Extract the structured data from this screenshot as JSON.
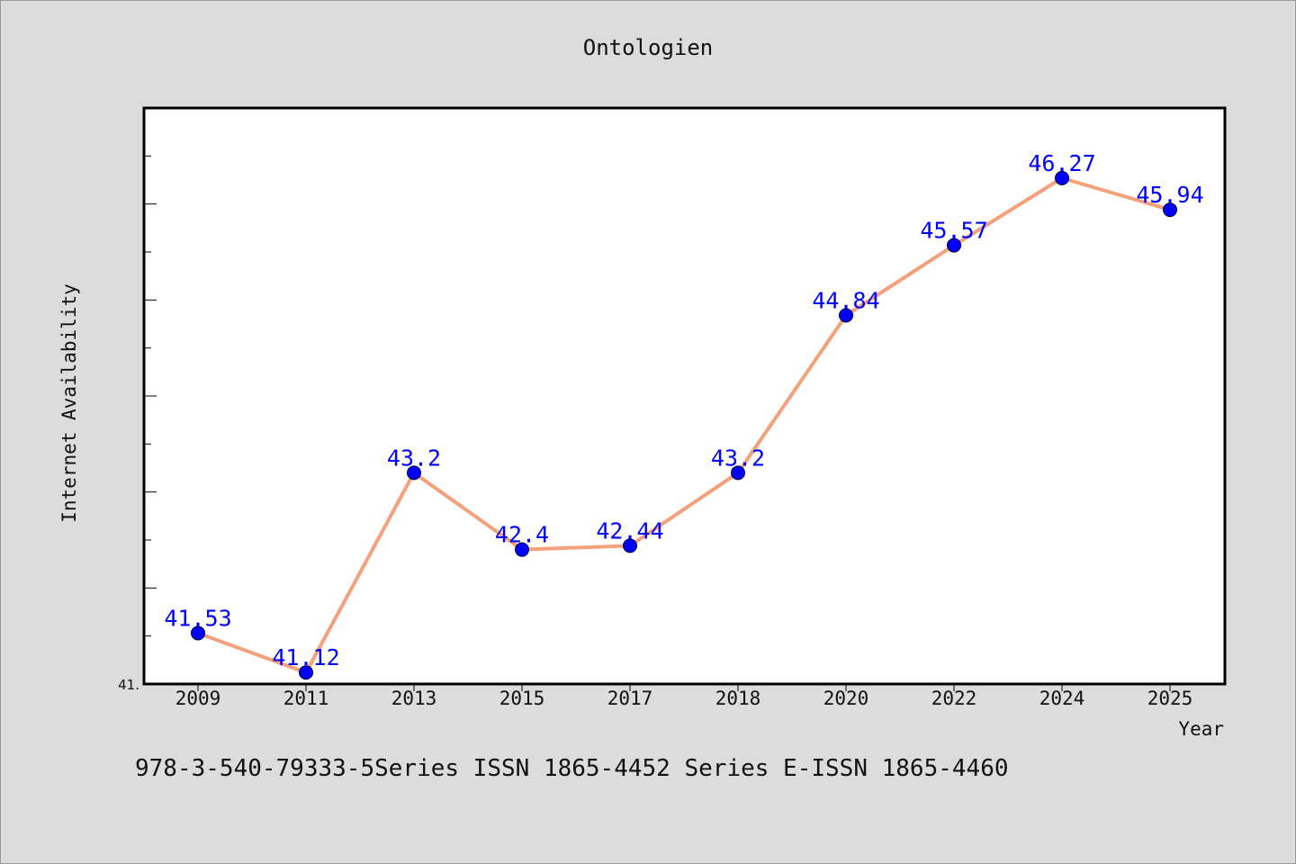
{
  "caption": "978-3-540-79333-5Series ISSN 1865-4452 Series E-ISSN 1865-4460",
  "chart_data": {
    "type": "line",
    "title": "Ontologien",
    "xlabel": "Year",
    "ylabel": "Internet Availability",
    "categories": [
      "2009",
      "2011",
      "2013",
      "2015",
      "2017",
      "2018",
      "2020",
      "2022",
      "2024",
      "2025"
    ],
    "series": [
      {
        "values": [
          41.53,
          41.12,
          43.2,
          42.4,
          42.44,
          43.2,
          44.84,
          45.57,
          46.27,
          45.94
        ],
        "data_labels": [
          "41.53",
          "41.12",
          "43.2",
          "42.4",
          "42.44",
          "43.2",
          "44.84",
          "45.57",
          "46.27",
          "45.94"
        ]
      }
    ],
    "y_tick_labels": [
      "41."
    ],
    "ylim": [
      41.0,
      47.0
    ],
    "grid": false,
    "colors": {
      "line": "#f4a07a",
      "marker": "#0000ff",
      "label": "#0000ff",
      "background": "#dcdcdc",
      "plot_background": "#ffffff"
    }
  }
}
